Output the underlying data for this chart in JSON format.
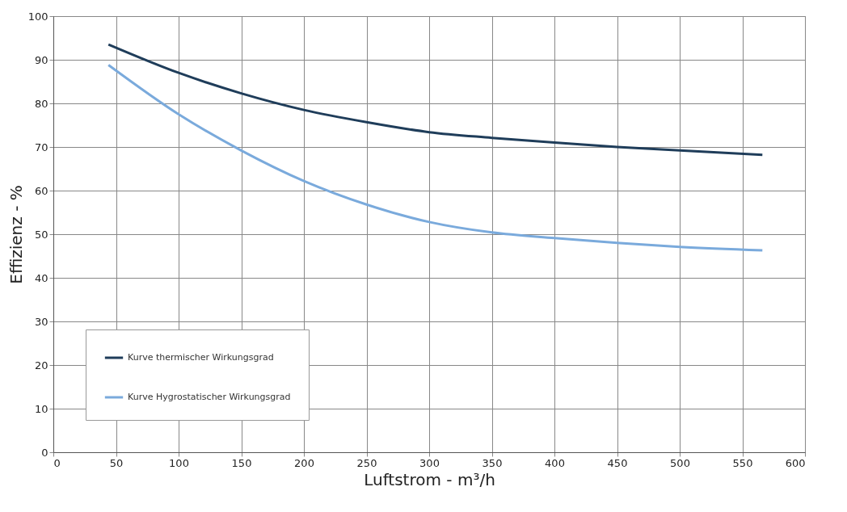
{
  "chart_data": {
    "type": "line",
    "xlabel": "Luftstrom - m³/h",
    "ylabel": "Effizienz - %",
    "xlim": [
      0,
      600
    ],
    "xticks": [
      0,
      50,
      100,
      150,
      200,
      250,
      300,
      350,
      400,
      450,
      500,
      550,
      600
    ],
    "ylim": [
      0,
      100
    ],
    "yticks": [
      0,
      10,
      20,
      30,
      40,
      50,
      60,
      70,
      80,
      90,
      100
    ],
    "grid": true,
    "legend": "bottom left",
    "line_style": "solid",
    "x": [
      44,
      100,
      150,
      200,
      250,
      300,
      350,
      400,
      450,
      500,
      566
    ],
    "series": [
      {
        "name": "Kurve thermischer Wirkungsgrad",
        "color": "#1f3d5a",
        "values": [
          93.5,
          87,
          82.3,
          78.5,
          75.7,
          73.4,
          72.1,
          71,
          70,
          69.2,
          68.2
        ]
      },
      {
        "name": "Kurve Hygrostatischer Wirkungsgrad",
        "color": "#7aaadc",
        "values": [
          88.8,
          77.5,
          69.2,
          62.2,
          56.8,
          52.8,
          50.4,
          49.1,
          48,
          47.1,
          46.3
        ]
      }
    ]
  }
}
